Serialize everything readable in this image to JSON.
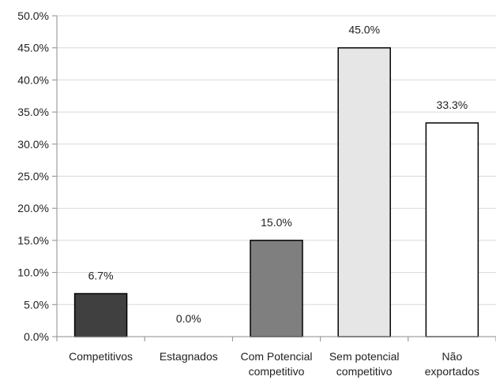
{
  "chart_data": {
    "type": "bar",
    "categories": [
      [
        "Competitivos"
      ],
      [
        "Estagnados"
      ],
      [
        "Com Potencial",
        "competitivo"
      ],
      [
        "Sem potencial",
        "competitivo"
      ],
      [
        "Não",
        "exportados"
      ]
    ],
    "values": [
      6.7,
      0.0,
      15.0,
      45.0,
      33.3
    ],
    "data_labels": [
      "6.7%",
      "0.0%",
      "15.0%",
      "45.0%",
      "33.3%"
    ],
    "bar_colors": [
      "#404040",
      "#404040",
      "#7f7f7f",
      "#e6e6e6",
      "#ffffff"
    ],
    "bar_stroke": "#000000",
    "title": "",
    "xlabel": "",
    "ylabel": "",
    "ylim": [
      0,
      50
    ],
    "y_ticks": [
      0,
      5,
      10,
      15,
      20,
      25,
      30,
      35,
      40,
      45,
      50
    ],
    "y_tick_labels": [
      "0.0%",
      "5.0%",
      "10.0%",
      "15.0%",
      "20.0%",
      "25.0%",
      "30.0%",
      "35.0%",
      "40.0%",
      "45.0%",
      "50.0%"
    ],
    "grid": true,
    "grid_color": "#d9d9d9",
    "legend": false
  }
}
